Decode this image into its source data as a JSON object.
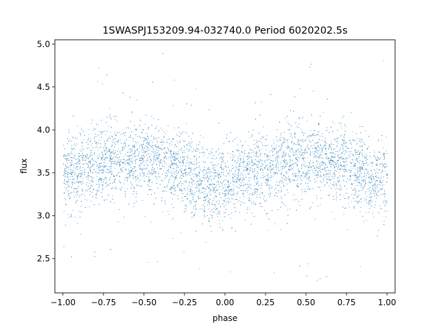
{
  "chart_data": {
    "type": "scatter",
    "title": "1SWASPJ153209.94-032740.0 Period 6020202.5s",
    "xlabel": "phase",
    "ylabel": "flux",
    "xlim": [
      -1.05,
      1.05
    ],
    "ylim": [
      2.1,
      5.05
    ],
    "xticks": [
      -1.0,
      -0.75,
      -0.5,
      -0.25,
      0.0,
      0.25,
      0.5,
      0.75,
      1.0
    ],
    "xtick_labels": [
      "−1.00",
      "−0.75",
      "−0.50",
      "−0.25",
      "0.00",
      "0.25",
      "0.50",
      "0.75",
      "1.00"
    ],
    "yticks": [
      2.5,
      3.0,
      3.5,
      4.0,
      4.5,
      5.0
    ],
    "ytick_labels": [
      "2.5",
      "3.0",
      "3.5",
      "4.0",
      "4.5",
      "5.0"
    ],
    "grid": false,
    "marker_color": "#1f77b4",
    "x_range": [
      -1.0,
      1.0
    ],
    "series": [
      {
        "profile": {
          "phase": [
            -1.0,
            -0.9,
            -0.8,
            -0.7,
            -0.6,
            -0.5,
            -0.4,
            -0.3,
            -0.2,
            -0.1,
            0.0,
            0.1,
            0.2,
            0.3,
            0.4,
            0.5,
            0.6,
            0.7,
            0.8,
            0.9,
            1.0
          ],
          "median_flux": [
            3.45,
            3.55,
            3.58,
            3.66,
            3.64,
            3.65,
            3.62,
            3.55,
            3.42,
            3.35,
            3.4,
            3.45,
            3.55,
            3.58,
            3.66,
            3.64,
            3.65,
            3.62,
            3.55,
            3.42,
            3.45
          ],
          "scatter_sigma": 0.22
        },
        "flux_range": [
          2.22,
          4.92
        ]
      }
    ]
  }
}
